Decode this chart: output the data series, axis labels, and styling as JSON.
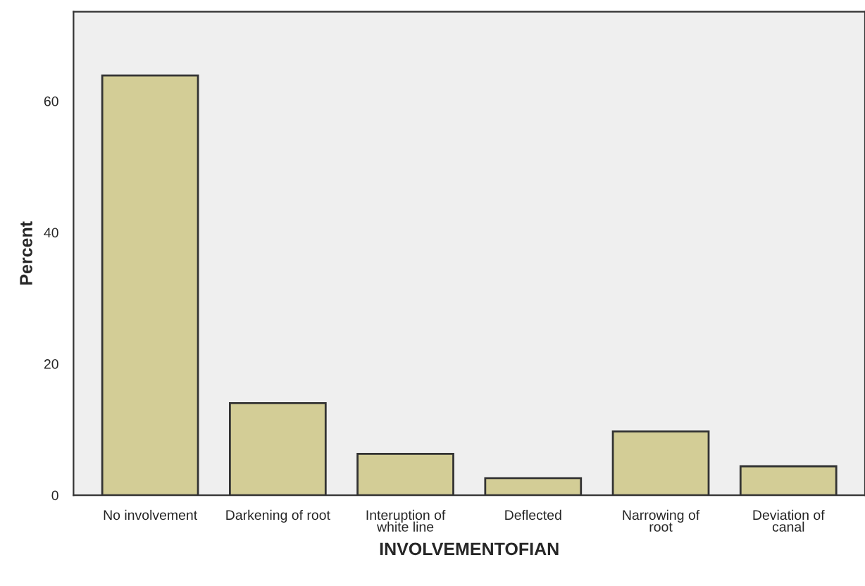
{
  "chart_data": {
    "type": "bar",
    "xlabel": "INVOLVEMENTOFIAN",
    "ylabel": "Percent",
    "categories": [
      "No involvement",
      "Darkening of root",
      "Interuption of\nwhite line",
      "Deflected",
      "Narrowing of\nroot",
      "Deviation of\ncanal"
    ],
    "values": [
      63.9,
      14.0,
      6.3,
      2.6,
      9.7,
      4.4
    ],
    "color": "#d3cd96",
    "ylim": [
      0,
      73.6
    ],
    "yticks": [
      0,
      20,
      40,
      60
    ],
    "grid": false,
    "legend": false
  }
}
